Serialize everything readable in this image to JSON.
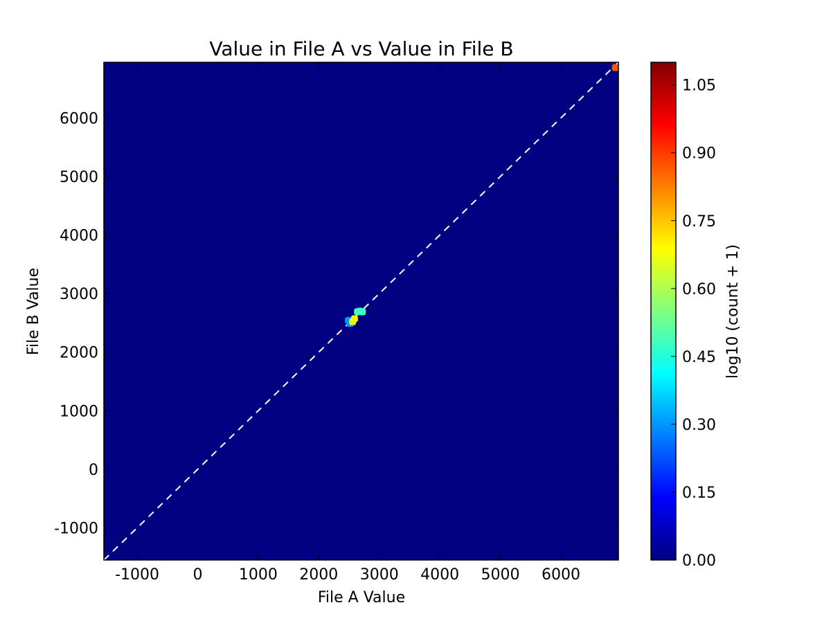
{
  "chart_data": {
    "type": "heatmap",
    "title": "Value in File A vs Value in File B",
    "xlabel": "File A Value",
    "ylabel": "File B Value",
    "xlim": [
      -1550,
      6950
    ],
    "ylim": [
      -1550,
      6950
    ],
    "xticks": [
      -1000,
      0,
      1000,
      2000,
      3000,
      4000,
      5000,
      6000
    ],
    "yticks": [
      -1000,
      0,
      1000,
      2000,
      3000,
      4000,
      5000,
      6000
    ],
    "background_color": "#000080",
    "colormap": "jet",
    "grid": false,
    "reference_line": {
      "style": "dashed",
      "color": "#ffffff",
      "from": [
        -1550,
        -1550
      ],
      "to": [
        6950,
        6950
      ]
    },
    "colorbar": {
      "label": "log10 (count + 1)",
      "range": [
        0,
        1.1
      ],
      "ticks": [
        "0.00",
        "0.15",
        "0.30",
        "0.45",
        "0.60",
        "0.75",
        "0.90",
        "1.05"
      ]
    },
    "points": [
      {
        "x": 2490,
        "y": 2540,
        "value": 0.3
      },
      {
        "x": 2520,
        "y": 2490,
        "value": 0.3
      },
      {
        "x": 2560,
        "y": 2520,
        "value": 0.65
      },
      {
        "x": 2590,
        "y": 2570,
        "value": 0.7
      },
      {
        "x": 2640,
        "y": 2690,
        "value": 0.5
      },
      {
        "x": 2680,
        "y": 2700,
        "value": 0.48
      },
      {
        "x": 2720,
        "y": 2690,
        "value": 0.48
      },
      {
        "x": 6900,
        "y": 6860,
        "value": 0.87
      }
    ]
  }
}
